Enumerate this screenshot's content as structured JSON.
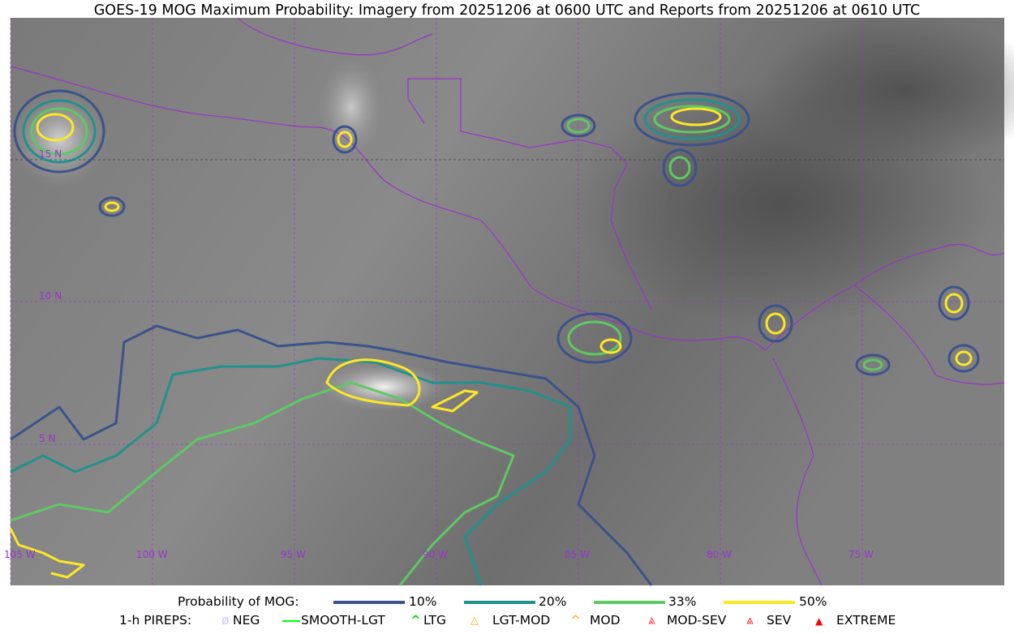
{
  "title": "GOES-19 MOG Maximum Probability: Imagery from 20251206 at 0600 UTC and Reports from 20251206 at 0610 UTC",
  "map": {
    "lon_labels": [
      "105 W",
      "100 W",
      "95 W",
      "90 W",
      "85 W",
      "80 W",
      "75 W"
    ],
    "lat_labels": [
      "15 N",
      "10 N",
      "5 N"
    ],
    "border_color": "#9933cc",
    "grid_color": "#9933cc"
  },
  "legend": {
    "probability_title": "Probability of MOG:",
    "probability_levels": [
      {
        "label": "10%",
        "color": "#3b528b"
      },
      {
        "label": "20%",
        "color": "#21918c"
      },
      {
        "label": "33%",
        "color": "#5ec962"
      },
      {
        "label": "50%",
        "color": "#fde725"
      }
    ],
    "pireps_title": "1-h PIREPS:",
    "pireps": [
      {
        "label": "NEG",
        "icon": "neg-icon",
        "color": "#c8c8ff"
      },
      {
        "label": "SMOOTH-LGT",
        "icon": "line-icon",
        "color": "#00ff00"
      },
      {
        "label": "LTG",
        "icon": "caret-icon",
        "color": "#00dd00"
      },
      {
        "label": "LGT-MOD",
        "icon": "triangle-icon",
        "color": "#ffb000"
      },
      {
        "label": "MOD",
        "icon": "caret-icon",
        "color": "#ffb000"
      },
      {
        "label": "MOD-SEV",
        "icon": "double-caret-icon",
        "color": "#ff3030"
      },
      {
        "label": "SEV",
        "icon": "double-caret-icon",
        "color": "#ff2020"
      },
      {
        "label": "EXTREME",
        "icon": "filled-triangle-icon",
        "color": "#ff0000"
      }
    ]
  }
}
